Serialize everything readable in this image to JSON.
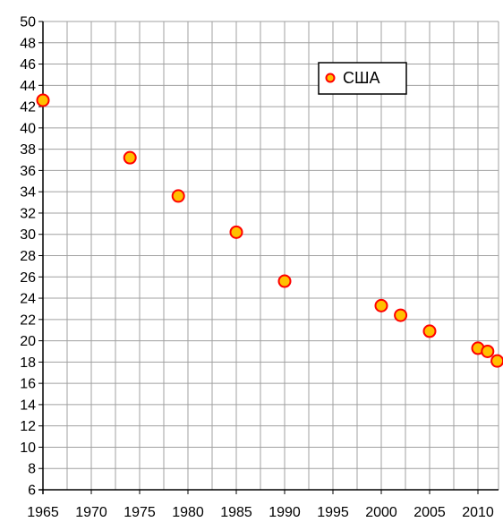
{
  "chart_data": {
    "type": "scatter",
    "title": "",
    "xlabel": "",
    "ylabel": "",
    "xlim": [
      1965,
      2012
    ],
    "ylim": [
      6,
      50
    ],
    "x_ticks": [
      1965,
      1970,
      1975,
      1980,
      1985,
      1990,
      1995,
      2000,
      2005,
      2010
    ],
    "y_ticks": [
      6,
      8,
      10,
      12,
      14,
      16,
      18,
      20,
      22,
      24,
      26,
      28,
      30,
      32,
      34,
      36,
      38,
      40,
      42,
      44,
      46,
      48,
      50
    ],
    "x_minor_step": 2.5,
    "grid": true,
    "legend": {
      "placement": "top-center",
      "entries": [
        "США"
      ]
    },
    "colors": {
      "marker_fill": "#ffc000",
      "marker_stroke": "#ff0000",
      "grid": "#a0a0a0",
      "axis": "#000000"
    },
    "series": [
      {
        "name": "США",
        "x": [
          1965,
          1974,
          1979,
          1985,
          1990,
          2000,
          2002,
          2005,
          2010,
          2011,
          2012
        ],
        "y": [
          42.6,
          37.2,
          33.6,
          30.2,
          25.6,
          23.3,
          22.4,
          20.9,
          19.3,
          19.0,
          18.1
        ]
      }
    ]
  }
}
